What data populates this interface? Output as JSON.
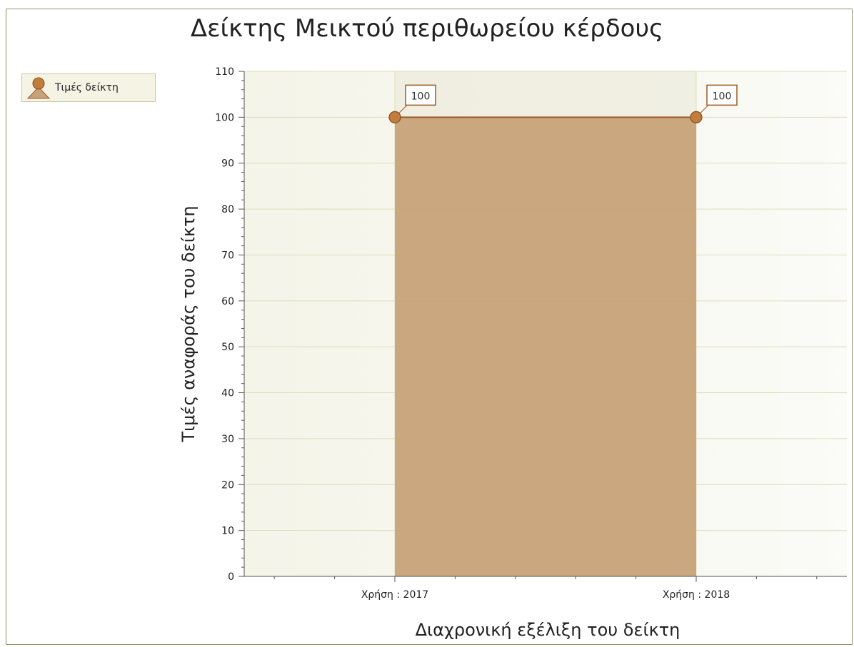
{
  "chart_data": {
    "type": "area",
    "title": "Δείκτης Μεικτού περιθωρείου κέρδους",
    "xlabel": "Διαχρονική εξέλιξη του δείκτη",
    "ylabel": "Τιμές αναφοράς του δείκτη",
    "categories": [
      "Χρήση : 2017",
      "Χρήση : 2018"
    ],
    "series": [
      {
        "name": "Τιμές δείκτη",
        "values": [
          100,
          100
        ]
      }
    ],
    "data_labels": [
      "100",
      "100"
    ],
    "ylim": [
      0,
      110
    ],
    "yticks": [
      0,
      10,
      20,
      30,
      40,
      50,
      60,
      70,
      80,
      90,
      100,
      110
    ],
    "grid": true,
    "legend_position": "top-left",
    "colors": {
      "fill": "#c8a27a",
      "line": "#9a5a26",
      "marker": "#c17d3c",
      "grid": "#dcdeb8",
      "plot_background": "#f7f7f0",
      "frame": "#8f9468"
    }
  }
}
